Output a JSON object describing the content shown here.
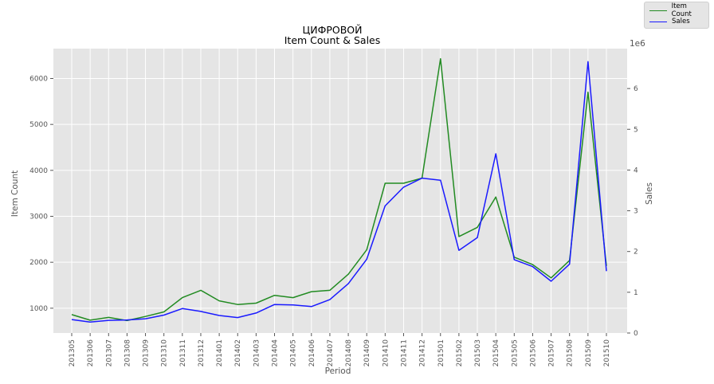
{
  "chart_data": {
    "type": "line",
    "title": "ЦИФРОВОЙ",
    "subtitle": "Item Count & Sales",
    "xlabel": "Period",
    "ylabel_left": "Item Count",
    "ylabel_right": "Sales",
    "right_axis_multiplier": "1e6",
    "grid": true,
    "legend_position": "top-right",
    "categories": [
      "201305",
      "201306",
      "201307",
      "201308",
      "201309",
      "201310",
      "201311",
      "201312",
      "201401",
      "201402",
      "201403",
      "201404",
      "201405",
      "201406",
      "201407",
      "201408",
      "201409",
      "201410",
      "201411",
      "201412",
      "201501",
      "201502",
      "201503",
      "201504",
      "201505",
      "201506",
      "201507",
      "201508",
      "201509",
      "201510"
    ],
    "left_ylim": [
      460,
      6650
    ],
    "left_yticks": [
      1000,
      2000,
      3000,
      4000,
      5000,
      6000
    ],
    "right_ylim": [
      0,
      6.98
    ],
    "right_yticks": [
      0,
      1,
      2,
      3,
      4,
      5,
      6
    ],
    "series": [
      {
        "name": "Item Count",
        "axis": "left",
        "color": "#228b22",
        "values": [
          860,
          740,
          800,
          730,
          820,
          920,
          1230,
          1390,
          1160,
          1080,
          1110,
          1280,
          1230,
          1360,
          1390,
          1740,
          2270,
          3720,
          3720,
          3830,
          6430,
          2560,
          2760,
          3420,
          2110,
          1950,
          1660,
          2040,
          5700,
          1920
        ]
      },
      {
        "name": "Sales",
        "axis": "right",
        "color": "#1a1aff",
        "values": [
          0.33,
          0.27,
          0.31,
          0.32,
          0.35,
          0.44,
          0.6,
          0.53,
          0.43,
          0.38,
          0.49,
          0.7,
          0.69,
          0.65,
          0.82,
          1.21,
          1.81,
          3.12,
          3.58,
          3.8,
          3.75,
          2.03,
          2.34,
          4.4,
          1.8,
          1.63,
          1.27,
          1.69,
          6.66,
          1.52
        ]
      }
    ]
  }
}
